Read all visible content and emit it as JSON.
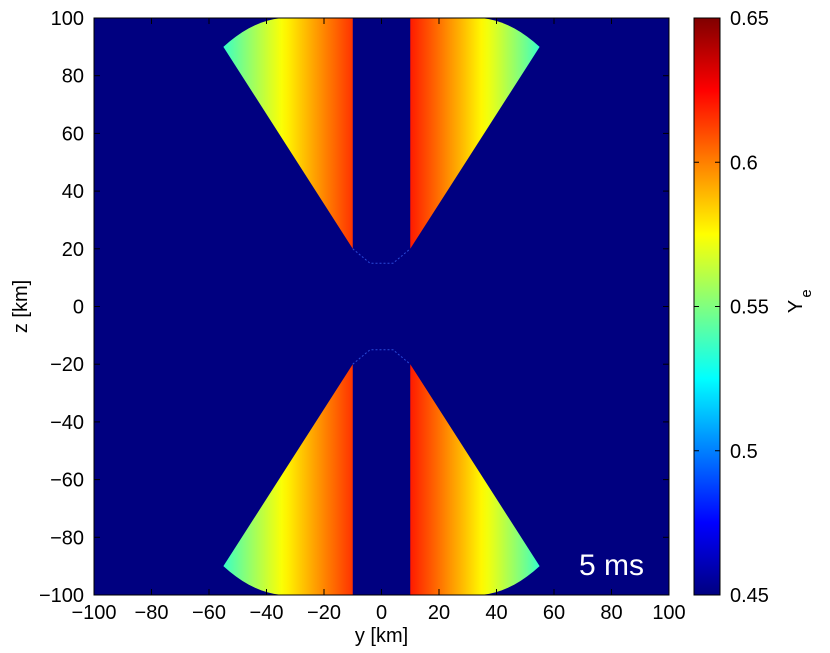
{
  "chart_data": {
    "type": "heatmap",
    "xlabel": "y [km]",
    "ylabel": "z [km]",
    "xlim": [
      -100,
      100
    ],
    "ylim": [
      -100,
      100
    ],
    "xticks": [
      -100,
      -80,
      -60,
      -40,
      -20,
      0,
      20,
      40,
      60,
      80,
      100
    ],
    "yticks": [
      -100,
      -80,
      -60,
      -40,
      -20,
      0,
      20,
      40,
      60,
      80,
      100
    ],
    "xtick_labels": [
      "−100",
      "−80",
      "−60",
      "−40",
      "−20",
      "0",
      "20",
      "40",
      "60",
      "80",
      "100"
    ],
    "ytick_labels": [
      "−100",
      "−80",
      "−60",
      "−40",
      "−20",
      "0",
      "20",
      "40",
      "60",
      "80",
      "100"
    ],
    "colorbar": {
      "label_main": "Y",
      "label_sub": "e",
      "lim": [
        0.45,
        0.65
      ],
      "ticks": [
        0.45,
        0.5,
        0.55,
        0.6,
        0.65
      ],
      "tick_labels": [
        "0.45",
        "0.5",
        "0.55",
        "0.6",
        "0.65"
      ],
      "colormap": "jet"
    },
    "annotation": "5 ms",
    "background_value": 0.45,
    "regions": [
      {
        "name": "upper-left lobe",
        "y_range": [
          -55,
          -10
        ],
        "z_range": [
          20,
          100
        ],
        "inner_edge_value": 0.615,
        "outer_edge_value": 0.535
      },
      {
        "name": "upper-right lobe",
        "y_range": [
          10,
          55
        ],
        "z_range": [
          20,
          100
        ],
        "inner_edge_value": 0.62,
        "outer_edge_value": 0.535
      },
      {
        "name": "lower-left lobe",
        "y_range": [
          -55,
          -10
        ],
        "z_range": [
          -100,
          -20
        ],
        "inner_edge_value": 0.615,
        "outer_edge_value": 0.535
      },
      {
        "name": "lower-right lobe",
        "y_range": [
          10,
          55
        ],
        "z_range": [
          -100,
          -20
        ],
        "inner_edge_value": 0.62,
        "outer_edge_value": 0.535
      }
    ]
  }
}
